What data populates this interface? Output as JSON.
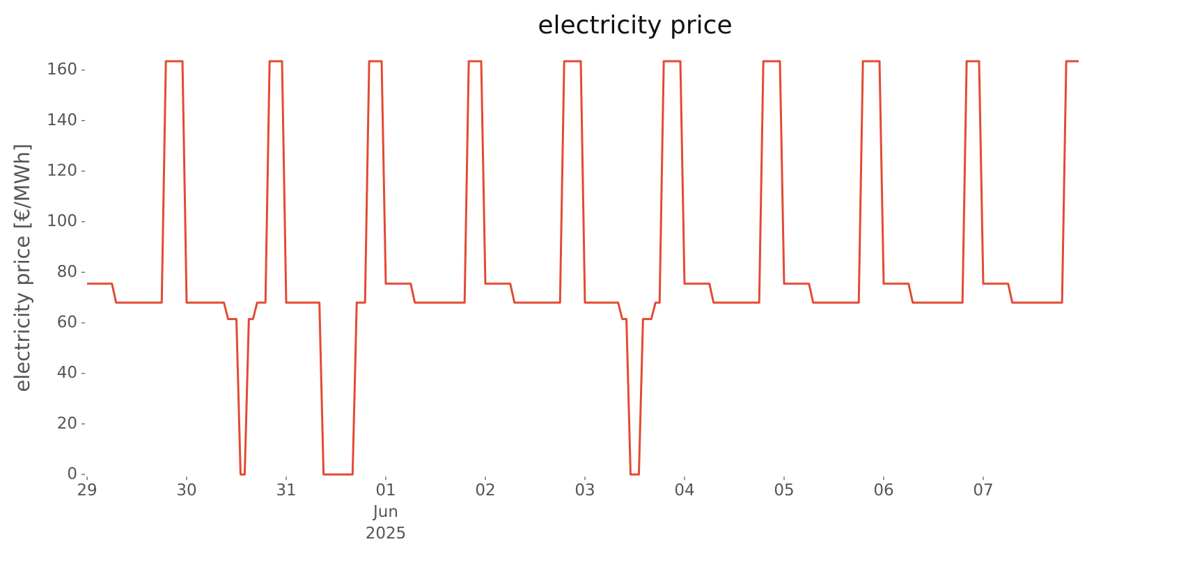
{
  "chart_data": {
    "type": "line",
    "title": "electricity price",
    "y_label": "electricity price [€/MWh]",
    "x": [
      0,
      6,
      7,
      18,
      19,
      23,
      24,
      33,
      34,
      36,
      37,
      38,
      39,
      40,
      41,
      43,
      44,
      47,
      48,
      56,
      57,
      64,
      65,
      67,
      68,
      71,
      72,
      78,
      79,
      91,
      92,
      95,
      96,
      102,
      103,
      114,
      115,
      119,
      120,
      128,
      129,
      130,
      131,
      133,
      134,
      136,
      137,
      138,
      139,
      143,
      144,
      150,
      151,
      162,
      163,
      167,
      168,
      174,
      175,
      186,
      187,
      191,
      192,
      198,
      199,
      211,
      212,
      215,
      216,
      222,
      223,
      235,
      236,
      239
    ],
    "values": [
      75.5,
      75.5,
      68,
      68,
      163.5,
      163.5,
      68,
      68,
      61.5,
      61.5,
      0,
      0,
      61.5,
      61.5,
      68,
      68,
      163.5,
      163.5,
      68,
      68,
      0,
      0,
      68,
      68,
      163.5,
      163.5,
      75.5,
      75.5,
      68,
      68,
      163.5,
      163.5,
      75.5,
      75.5,
      68,
      68,
      163.5,
      163.5,
      68,
      68,
      61.5,
      61.5,
      0,
      0,
      61.5,
      61.5,
      68,
      68,
      163.5,
      163.5,
      75.5,
      75.5,
      68,
      68,
      163.5,
      163.5,
      75.5,
      75.5,
      68,
      68,
      163.5,
      163.5,
      75.5,
      75.5,
      68,
      68,
      163.5,
      163.5,
      75.5,
      75.5,
      68,
      68,
      163.5,
      163.5
    ],
    "color": "#e24a33",
    "xlim": [
      0,
      239
    ],
    "xticks": [
      {
        "value": 0,
        "label": "29"
      },
      {
        "value": 24,
        "label": "30"
      },
      {
        "value": 48,
        "label": "31"
      },
      {
        "value": 72,
        "label": "01\nJun\n2025"
      },
      {
        "value": 96,
        "label": "02"
      },
      {
        "value": 120,
        "label": "03"
      },
      {
        "value": 144,
        "label": "04"
      },
      {
        "value": 168,
        "label": "05"
      },
      {
        "value": 192,
        "label": "06"
      },
      {
        "value": 216,
        "label": "07"
      }
    ],
    "ylim": [
      0,
      163.5
    ],
    "yticks": [
      0,
      20,
      40,
      60,
      80,
      100,
      120,
      140,
      160
    ]
  }
}
